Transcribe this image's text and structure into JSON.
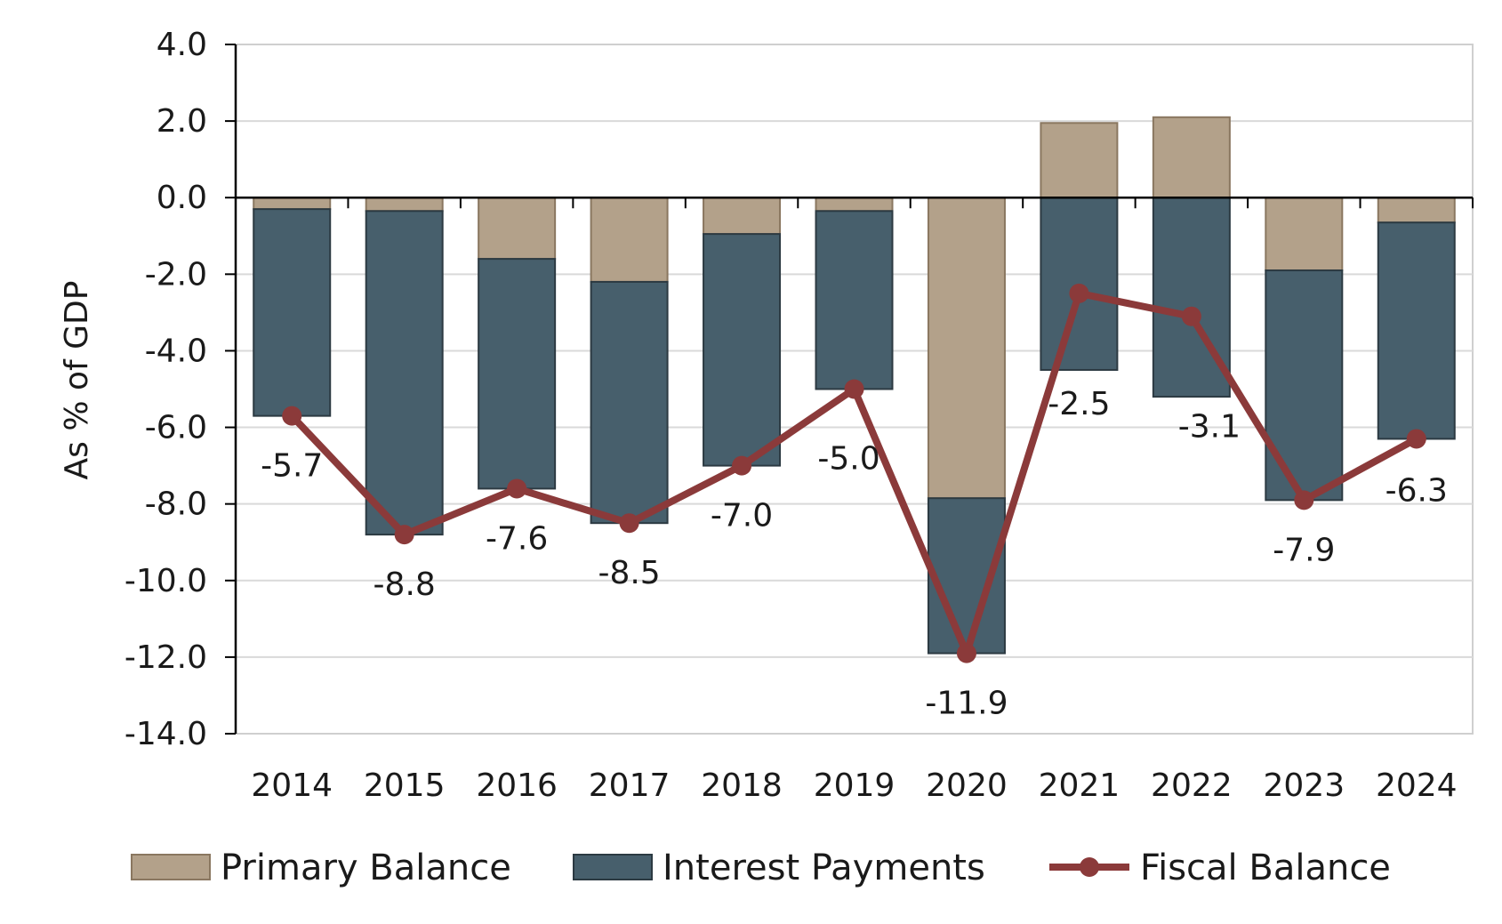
{
  "chart_data": {
    "type": "bar",
    "stacked": true,
    "title": "",
    "xlabel": "",
    "ylabel": "As % of GDP",
    "ylim": [
      -14,
      4
    ],
    "ytick_step": 2,
    "y_tick_labels": [
      "4.0",
      "2.0",
      "0.0",
      "-2.0",
      "-4.0",
      "-6.0",
      "-8.0",
      "-10.0",
      "-12.0",
      "-14.0"
    ],
    "categories": [
      "2014",
      "2015",
      "2016",
      "2017",
      "2018",
      "2019",
      "2020",
      "2021",
      "2022",
      "2023",
      "2024"
    ],
    "grid": true,
    "legend_position": "bottom",
    "series": [
      {
        "name": "Primary Balance",
        "type": "bar",
        "color": "#b3a18a",
        "values": [
          -0.3,
          -0.35,
          -1.6,
          -2.2,
          -0.95,
          -0.35,
          -7.85,
          1.95,
          2.1,
          -1.9,
          -0.65
        ]
      },
      {
        "name": "Interest Payments",
        "type": "bar",
        "color": "#475f6c",
        "values": [
          -5.4,
          -8.45,
          -6.0,
          -6.3,
          -6.05,
          -4.65,
          -4.05,
          -4.5,
          -5.2,
          -6.0,
          -5.65
        ]
      },
      {
        "name": "Fiscal Balance",
        "type": "line",
        "color": "#8b3a3a",
        "values": [
          -5.7,
          -8.8,
          -7.6,
          -8.5,
          -7.0,
          -5.0,
          -11.9,
          -2.5,
          -3.1,
          -7.9,
          -6.3
        ],
        "labels": [
          "-5.7",
          "-8.8",
          "-7.6",
          "-8.5",
          "-7.0",
          "-5.0",
          "-11.9",
          "-2.5",
          "-3.1",
          "-7.9",
          "-6.3"
        ]
      }
    ]
  }
}
